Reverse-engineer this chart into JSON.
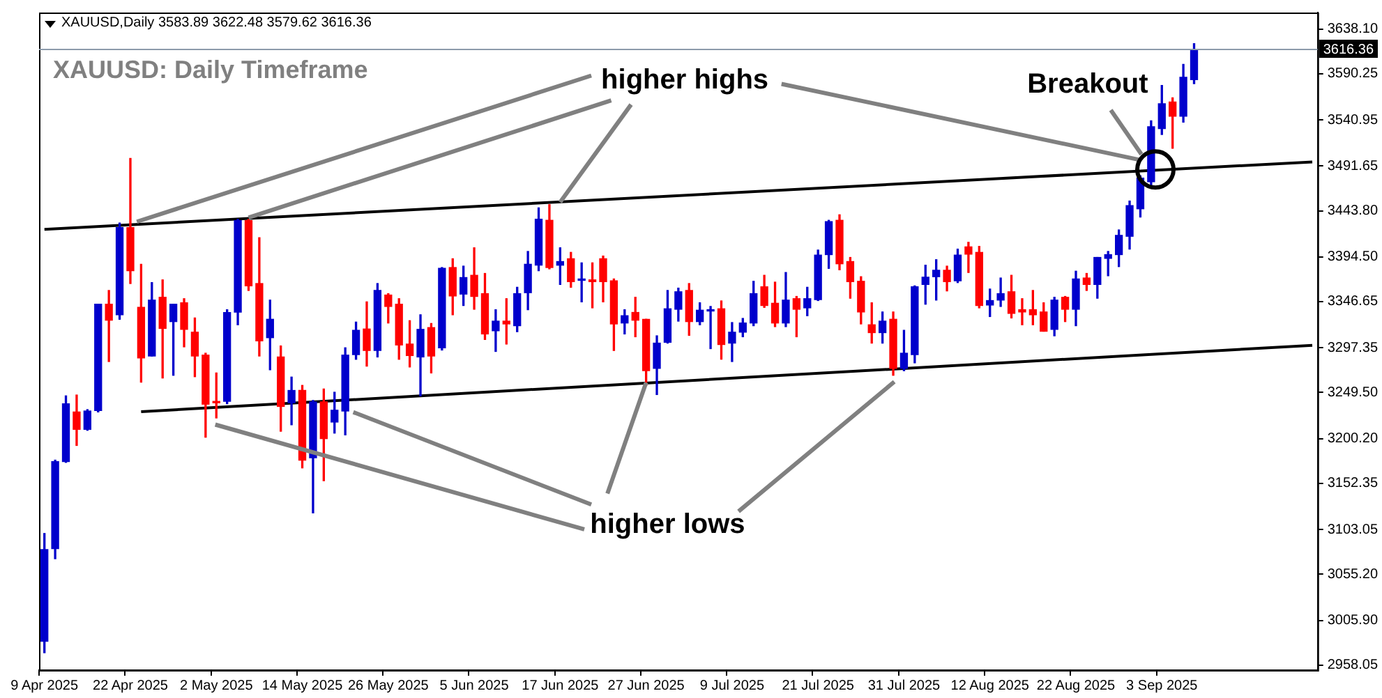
{
  "chart_data": {
    "type": "candlestick",
    "title": "XAUUSD: Daily Timeframe",
    "subtitle": "XAUUSD,Daily 3583.89 3622.48 3579.62 3616.36",
    "categories": [
      "9 Apr 2025",
      null,
      null,
      null,
      null,
      null,
      null,
      null,
      "22 Apr 2025",
      null,
      null,
      null,
      null,
      null,
      null,
      null,
      "2 May 2025",
      null,
      null,
      null,
      null,
      null,
      null,
      null,
      "14 May 2025",
      null,
      null,
      null,
      null,
      null,
      null,
      null,
      "26 May 2025",
      null,
      null,
      null,
      null,
      null,
      null,
      null,
      "5 Jun 2025",
      null,
      null,
      null,
      null,
      null,
      null,
      null,
      "17 Jun 2025",
      null,
      null,
      null,
      null,
      null,
      null,
      null,
      "27 Jun 2025",
      null,
      null,
      null,
      null,
      null,
      null,
      null,
      "9 Jul 2025",
      null,
      null,
      null,
      null,
      null,
      null,
      null,
      "21 Jul 2025",
      null,
      null,
      null,
      null,
      null,
      null,
      null,
      "31 Jul 2025",
      null,
      null,
      null,
      null,
      null,
      null,
      null,
      "12 Aug 2025",
      null,
      null,
      null,
      null,
      null,
      null,
      null,
      "22 Aug 2025",
      null,
      null,
      null,
      null,
      null,
      null,
      null,
      "3 Sep 2025",
      null,
      null,
      null,
      null,
      null,
      null,
      null,
      null,
      null,
      null,
      null,
      null,
      null,
      null
    ],
    "ohlc": [
      [
        2983.6,
        3098.8,
        2971.3,
        3081.6
      ],
      [
        3082.6,
        3177.2,
        3071.8,
        3175.7
      ],
      [
        3175.7,
        3245.9,
        3174.8,
        3237.5
      ],
      [
        3228.7,
        3246.8,
        3192.9,
        3210.1
      ],
      [
        3210.1,
        3231.2,
        3209.1,
        3229.7
      ],
      [
        3230.2,
        3343.9,
        3228.7,
        3343.9
      ],
      [
        3343.9,
        3358.6,
        3282.6,
        3326.8
      ],
      [
        3332.6,
        3430.7,
        3327.8,
        3425.8
      ],
      [
        3425.8,
        3499.8,
        3366.0,
        3379.7
      ],
      [
        3340.5,
        3386.6,
        3260.6,
        3286.5
      ],
      [
        3288.5,
        3367.0,
        3288.5,
        3348.3
      ],
      [
        3351.3,
        3369.9,
        3265.0,
        3318.0
      ],
      [
        3325.3,
        3343.9,
        3267.9,
        3343.9
      ],
      [
        3345.4,
        3349.8,
        3298.3,
        3317.0
      ],
      [
        3314.0,
        3329.2,
        3266.4,
        3288.5
      ],
      [
        3289.5,
        3291.5,
        3201.7,
        3237.0
      ],
      [
        3240.0,
        3270.4,
        3222.3,
        3238.5
      ],
      [
        3240.0,
        3338.0,
        3237.5,
        3335.0
      ],
      [
        3335.5,
        3434.7,
        3321.9,
        3433.2
      ],
      [
        3433.2,
        3434.7,
        3358.6,
        3363.5
      ],
      [
        3366.0,
        3415.0,
        3288.5,
        3304.7
      ],
      [
        3308.1,
        3348.3,
        3273.8,
        3327.8
      ],
      [
        3287.5,
        3299.3,
        3208.1,
        3234.6
      ],
      [
        3238.5,
        3266.0,
        3215.0,
        3251.7
      ],
      [
        3251.7,
        3257.1,
        3168.9,
        3177.2
      ],
      [
        3179.7,
        3241.0,
        3120.8,
        3239.5
      ],
      [
        3239.5,
        3253.2,
        3155.2,
        3200.2
      ],
      [
        3217.9,
        3249.8,
        3206.1,
        3230.6
      ],
      [
        3229.7,
        3297.3,
        3204.2,
        3289.5
      ],
      [
        3290.0,
        3324.8,
        3285.0,
        3316.0
      ],
      [
        3317.4,
        3346.4,
        3277.7,
        3294.4
      ],
      [
        3294.4,
        3366.0,
        3287.5,
        3358.6
      ],
      [
        3353.7,
        3355.2,
        3323.8,
        3341.5
      ],
      [
        3343.9,
        3349.8,
        3285.0,
        3300.3
      ],
      [
        3301.3,
        3326.3,
        3276.8,
        3289.0
      ],
      [
        3287.5,
        3332.6,
        3245.9,
        3317.0
      ],
      [
        3318.9,
        3323.3,
        3270.4,
        3288.5
      ],
      [
        3297.3,
        3383.1,
        3294.9,
        3382.2
      ],
      [
        3383.1,
        3392.5,
        3332.6,
        3352.7
      ],
      [
        3354.7,
        3384.6,
        3342.5,
        3372.4
      ],
      [
        3374.8,
        3404.2,
        3338.5,
        3352.2
      ],
      [
        3355.2,
        3376.8,
        3306.2,
        3312.1
      ],
      [
        3315.5,
        3338.0,
        3293.4,
        3325.8
      ],
      [
        3325.8,
        3349.8,
        3301.3,
        3322.8
      ],
      [
        3320.9,
        3362.0,
        3314.5,
        3355.2
      ],
      [
        3356.2,
        3400.3,
        3338.0,
        3386.6
      ],
      [
        3385.6,
        3446.9,
        3379.7,
        3434.7
      ],
      [
        3433.6,
        3450.3,
        3381.7,
        3383.1
      ],
      [
        3385.6,
        3404.2,
        3365.0,
        3389.5
      ],
      [
        3392.5,
        3399.3,
        3362.0,
        3368.0
      ],
      [
        3369.4,
        3388.1,
        3346.4,
        3369.9
      ],
      [
        3369.9,
        3388.1,
        3340.0,
        3368.0
      ],
      [
        3392.5,
        3395.4,
        3346.4,
        3368.0
      ],
      [
        3368.9,
        3370.9,
        3294.4,
        3322.8
      ],
      [
        3323.8,
        3338.0,
        3312.1,
        3331.6
      ],
      [
        3335.1,
        3351.3,
        3309.1,
        3326.8
      ],
      [
        3327.8,
        3327.8,
        3257.1,
        3272.8
      ],
      [
        3275.3,
        3310.1,
        3247.3,
        3302.3
      ],
      [
        3303.2,
        3358.6,
        3302.3,
        3339.0
      ],
      [
        3338.5,
        3361.1,
        3325.8,
        3357.2
      ],
      [
        3358.6,
        3366.0,
        3310.6,
        3325.3
      ],
      [
        3325.3,
        3345.4,
        3321.9,
        3337.5
      ],
      [
        3336.6,
        3341.5,
        3296.4,
        3337.5
      ],
      [
        3339.0,
        3347.4,
        3285.1,
        3300.8
      ],
      [
        3302.3,
        3324.3,
        3282.6,
        3314.0
      ],
      [
        3314.0,
        3328.7,
        3309.1,
        3323.8
      ],
      [
        3323.8,
        3368.4,
        3320.9,
        3355.2
      ],
      [
        3362.5,
        3374.8,
        3340.5,
        3342.5
      ],
      [
        3344.9,
        3367.5,
        3319.9,
        3323.8
      ],
      [
        3323.8,
        3377.8,
        3319.9,
        3348.3
      ],
      [
        3349.8,
        3352.2,
        3309.1,
        3338.5
      ],
      [
        3340.0,
        3362.0,
        3331.6,
        3349.8
      ],
      [
        3348.8,
        3401.8,
        3347.8,
        3396.4
      ],
      [
        3396.9,
        3433.6,
        3382.2,
        3432.2
      ],
      [
        3433.6,
        3439.5,
        3380.7,
        3387.1
      ],
      [
        3389.5,
        3393.9,
        3350.3,
        3368.0
      ],
      [
        3368.4,
        3373.3,
        3322.8,
        3335.6
      ],
      [
        3321.9,
        3345.4,
        3302.3,
        3313.5
      ],
      [
        3313.5,
        3335.6,
        3302.3,
        3325.8
      ],
      [
        3327.8,
        3335.6,
        3267.9,
        3275.3
      ],
      [
        3275.3,
        3316.0,
        3272.8,
        3291.5
      ],
      [
        3290.0,
        3363.5,
        3281.2,
        3362.5
      ],
      [
        3365.0,
        3385.6,
        3343.9,
        3372.8
      ],
      [
        3373.3,
        3391.5,
        3348.3,
        3380.2
      ],
      [
        3380.2,
        3384.6,
        3358.1,
        3368.0
      ],
      [
        3368.9,
        3402.8,
        3367.0,
        3396.4
      ],
      [
        3405.2,
        3410.1,
        3377.8,
        3397.4
      ],
      [
        3399.3,
        3405.7,
        3340.0,
        3342.5
      ],
      [
        3343.0,
        3360.1,
        3330.7,
        3347.8
      ],
      [
        3348.3,
        3371.9,
        3341.5,
        3355.2
      ],
      [
        3357.2,
        3374.8,
        3329.2,
        3334.1
      ],
      [
        3338.0,
        3349.8,
        3321.9,
        3335.6
      ],
      [
        3338.0,
        3358.6,
        3321.9,
        3332.6
      ],
      [
        3335.6,
        3345.4,
        3315.0,
        3315.0
      ],
      [
        3317.0,
        3351.3,
        3310.1,
        3348.3
      ],
      [
        3351.3,
        3352.2,
        3325.3,
        3338.5
      ],
      [
        3338.5,
        3379.2,
        3320.9,
        3370.9
      ],
      [
        3371.9,
        3376.8,
        3358.6,
        3365.0
      ],
      [
        3365.0,
        3393.9,
        3350.3,
        3393.9
      ],
      [
        3392.9,
        3400.3,
        3374.3,
        3396.9
      ],
      [
        3396.9,
        3423.3,
        3384.1,
        3417.5
      ],
      [
        3416.5,
        3454.2,
        3402.8,
        3449.3
      ],
      [
        3445.9,
        3481.2,
        3437.1,
        3478.8
      ],
      [
        3474.8,
        3540.0,
        3471.4,
        3533.7
      ],
      [
        3531.7,
        3577.8,
        3525.3,
        3558.2
      ],
      [
        3560.1,
        3564.5,
        3510.6,
        3544.9
      ],
      [
        3544.9,
        3600.3,
        3538.6,
        3586.6
      ],
      [
        3583.89,
        3622.48,
        3579.62,
        3616.36
      ],
      null,
      null,
      null,
      null,
      null,
      null,
      null,
      null,
      null,
      null,
      null
    ],
    "colors": [
      "#0000cc",
      "#0000cc",
      "#0000cc",
      "#ff0000",
      "#0000cc",
      "#0000cc",
      "#ff0000",
      "#0000cc",
      "#ff0000",
      "#ff0000",
      "#0000cc",
      "#ff0000",
      "#0000cc",
      "#ff0000",
      "#ff0000",
      "#ff0000",
      "#ff0000",
      "#0000cc",
      "#0000cc",
      "#ff0000",
      "#ff0000",
      "#0000cc",
      "#ff0000",
      "#0000cc",
      "#ff0000",
      "#0000cc",
      "#ff0000",
      "#0000cc",
      "#0000cc",
      "#0000cc",
      "#ff0000",
      "#0000cc",
      "#ff0000",
      "#ff0000",
      "#ff0000",
      "#0000cc",
      "#ff0000",
      "#0000cc",
      "#ff0000",
      "#0000cc",
      "#ff0000",
      "#ff0000",
      "#0000cc",
      "#ff0000",
      "#0000cc",
      "#0000cc",
      "#0000cc",
      "#ff0000",
      "#0000cc",
      "#ff0000",
      "#0000cc",
      "#ff0000",
      "#ff0000",
      "#ff0000",
      "#0000cc",
      "#ff0000",
      "#ff0000",
      "#0000cc",
      "#0000cc",
      "#0000cc",
      "#ff0000",
      "#0000cc",
      "#0000cc",
      "#ff0000",
      "#0000cc",
      "#0000cc",
      "#0000cc",
      "#ff0000",
      "#ff0000",
      "#0000cc",
      "#ff0000",
      "#0000cc",
      "#0000cc",
      "#0000cc",
      "#ff0000",
      "#ff0000",
      "#ff0000",
      "#ff0000",
      "#0000cc",
      "#ff0000",
      "#0000cc",
      "#0000cc",
      "#0000cc",
      "#0000cc",
      "#ff0000",
      "#0000cc",
      "#ff0000",
      "#ff0000",
      "#0000cc",
      "#0000cc",
      "#ff0000",
      "#ff0000",
      "#ff0000",
      "#ff0000",
      "#0000cc",
      "#ff0000",
      "#0000cc",
      "#ff0000",
      "#0000cc",
      "#0000cc",
      "#0000cc",
      "#0000cc",
      "#0000cc",
      "#0000cc",
      "#0000cc",
      "#ff0000",
      "#0000cc",
      "#0000cc",
      null,
      null,
      null,
      null,
      null,
      null,
      null,
      null,
      null,
      null,
      null
    ],
    "series": [
      {
        "type": "line",
        "color": "#000000",
        "values": [
          3424,
          null,
          null,
          null,
          null,
          null,
          null,
          null,
          null,
          null,
          null,
          null,
          null,
          null,
          null,
          null,
          null,
          null,
          null,
          null,
          null,
          null,
          null,
          null,
          null,
          null,
          null,
          null,
          null,
          null,
          null,
          null,
          null,
          null,
          null,
          null,
          null,
          null,
          null,
          null,
          null,
          null,
          null,
          null,
          null,
          null,
          null,
          null,
          null,
          null,
          null,
          null,
          null,
          null,
          null,
          null,
          null,
          null,
          null,
          null,
          null,
          null,
          null,
          null,
          null,
          null,
          null,
          null,
          null,
          null,
          null,
          null,
          null,
          null,
          null,
          null,
          null,
          null,
          null,
          null,
          null,
          null,
          null,
          null,
          null,
          null,
          null,
          null,
          null,
          null,
          null,
          null,
          null,
          null,
          null,
          null,
          null,
          null,
          null,
          null,
          null,
          null,
          null,
          null,
          null,
          null,
          null,
          null,
          null,
          null,
          null,
          null,
          null,
          null,
          null,
          null,
          null,
          null,
          3496
        ]
      },
      {
        "type": "line",
        "color": "#000000",
        "values": [
          null,
          null,
          null,
          null,
          null,
          null,
          null,
          null,
          null,
          3229,
          null,
          null,
          null,
          null,
          null,
          null,
          null,
          null,
          null,
          null,
          null,
          null,
          null,
          null,
          null,
          null,
          null,
          null,
          null,
          null,
          null,
          null,
          null,
          null,
          null,
          null,
          null,
          null,
          null,
          null,
          null,
          null,
          null,
          null,
          null,
          null,
          null,
          null,
          null,
          null,
          null,
          null,
          null,
          null,
          null,
          null,
          null,
          null,
          null,
          null,
          null,
          null,
          null,
          null,
          null,
          null,
          null,
          null,
          null,
          null,
          null,
          null,
          null,
          null,
          null,
          null,
          null,
          null,
          null,
          null,
          null,
          null,
          null,
          null,
          null,
          null,
          null,
          null,
          null,
          null,
          null,
          null,
          null,
          null,
          null,
          null,
          null,
          null,
          null,
          null,
          null,
          null,
          null,
          null,
          null,
          null,
          null,
          null,
          null,
          null,
          null,
          null,
          null,
          null,
          null,
          null,
          null,
          null,
          3300
        ]
      }
    ],
    "ylim": [
      2952.7,
      3655.7
    ],
    "yticks": [
      {
        "value": 3638.1,
        "label": "3638.10"
      },
      {
        "value": 3590.25,
        "label": "3590.25"
      },
      {
        "value": 3540.95,
        "label": "3540.95"
      },
      {
        "value": 3491.65,
        "label": "3491.65"
      },
      {
        "value": 3443.8,
        "label": "3443.80"
      },
      {
        "value": 3394.5,
        "label": "3394.50"
      },
      {
        "value": 3346.65,
        "label": "3346.65"
      },
      {
        "value": 3297.35,
        "label": "3297.35"
      },
      {
        "value": 3249.5,
        "label": "3249.50"
      },
      {
        "value": 3200.2,
        "label": "3200.20"
      },
      {
        "value": 3152.35,
        "label": "3152.35"
      },
      {
        "value": 3103.05,
        "label": "3103.05"
      },
      {
        "value": 3055.2,
        "label": "3055.20"
      },
      {
        "value": 3005.9,
        "label": "3005.90"
      },
      {
        "value": 2958.05,
        "label": "2958.05"
      }
    ],
    "ref_lines": [
      {
        "axis": "y",
        "value": 3616.36,
        "label": "3616.36",
        "color": "#8c9bab"
      }
    ],
    "annotations": [
      {
        "text": "higher highs",
        "x": "17 Jun 2025",
        "y": 3453
      },
      {
        "text": "higher lows",
        "x": "27 Jun 2025",
        "y": 3260
      },
      {
        "text": "Breakout",
        "y": 3488
      }
    ],
    "grid": false,
    "legend": false
  }
}
